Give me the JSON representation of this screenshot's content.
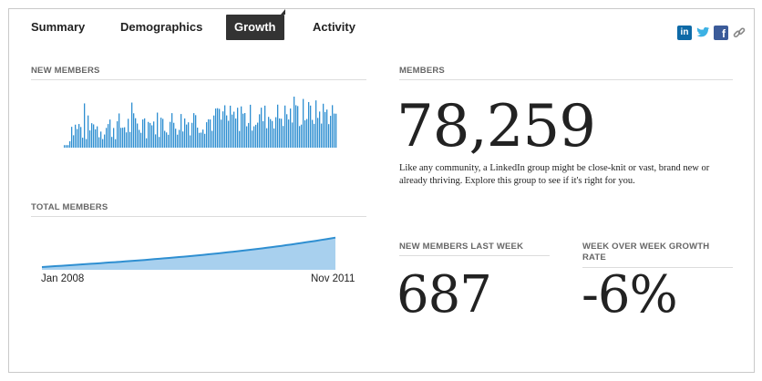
{
  "tabs": [
    {
      "label": "Summary",
      "active": false
    },
    {
      "label": "Demographics",
      "active": false
    },
    {
      "label": "Growth",
      "active": true
    },
    {
      "label": "Activity",
      "active": false
    }
  ],
  "share": [
    "linkedin-icon",
    "twitter-icon",
    "facebook-icon",
    "link-icon"
  ],
  "colors": {
    "bar": "#2f8fd1",
    "area_fill": "#a8d0ee",
    "area_line": "#2f8fd1",
    "active_tab": "#333333"
  },
  "new_members": {
    "label": "NEW MEMBERS"
  },
  "total_members": {
    "label": "TOTAL MEMBERS",
    "x_start": "Jan 2008",
    "x_end": "Nov 2011"
  },
  "members": {
    "label": "MEMBERS",
    "value": "78,259",
    "description": "Like any community, a LinkedIn group might be close-knit or vast, brand new or already thriving. Explore this group to see if it's right for you."
  },
  "new_last_week": {
    "label": "NEW MEMBERS LAST WEEK",
    "value": "687"
  },
  "wow_growth": {
    "label": "WEEK OVER WEEK GROWTH RATE",
    "value": "-6%"
  }
}
